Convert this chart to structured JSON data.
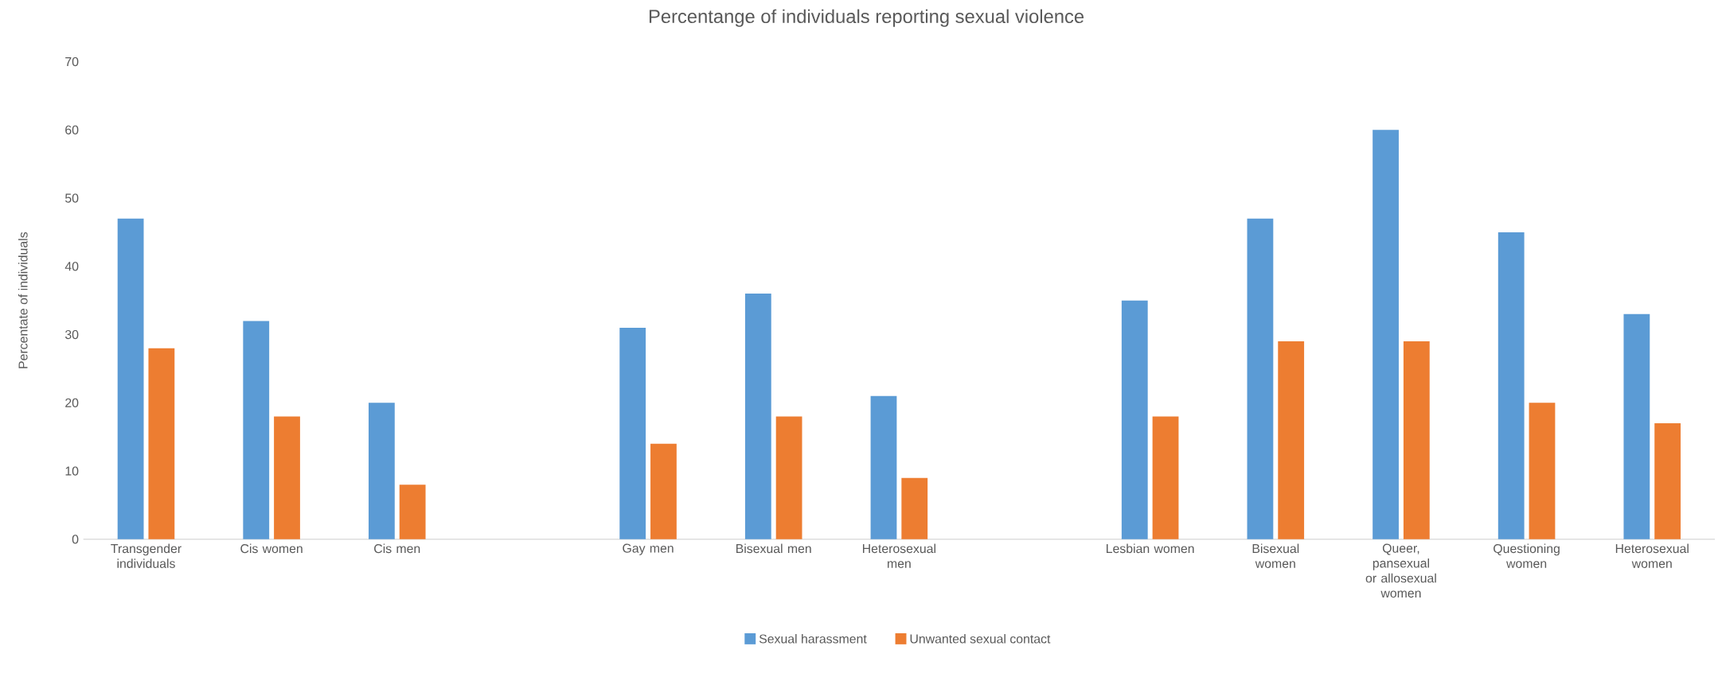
{
  "chart_data": {
    "type": "bar",
    "title": "Percentange of individuals reporting sexual violence",
    "ylabel": "Percentate of individuals",
    "categories": [
      "Transgender individuals",
      "Cis women",
      "Cis men",
      null,
      "Gay men",
      "Bisexual men",
      "Heterosexual men",
      null,
      "Lesbian women",
      "Bisexual women",
      "Queer, pansexual or allosexual women",
      "Questioning women",
      "Heterosexual women"
    ],
    "series": [
      {
        "name": "Sexual harassment",
        "color": "#5b9bd5",
        "values": [
          47,
          32,
          20,
          null,
          31,
          36,
          21,
          null,
          35,
          47,
          60,
          45,
          33
        ]
      },
      {
        "name": "Unwanted sexual contact",
        "color": "#ed7d31",
        "values": [
          28,
          18,
          8,
          null,
          14,
          18,
          9,
          null,
          18,
          29,
          29,
          20,
          17
        ]
      }
    ],
    "ylim": [
      0,
      70
    ],
    "yticks": [
      0,
      10,
      20,
      30,
      40,
      50,
      60,
      70
    ],
    "grid": false,
    "legend": "bottom"
  }
}
